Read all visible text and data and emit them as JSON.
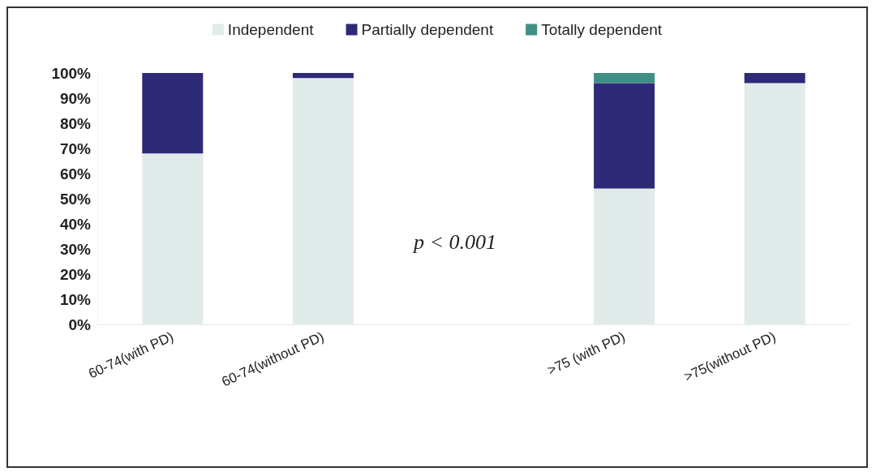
{
  "chart_data": {
    "type": "bar",
    "stacked": true,
    "categories": [
      "60-74(with PD)",
      "60-74(without PD)",
      null,
      ">75 (with PD)",
      ">75(without PD)"
    ],
    "series": [
      {
        "name": "Independent",
        "color": "#e1ecea",
        "values": [
          68,
          98,
          null,
          54,
          96
        ]
      },
      {
        "name": "Partially dependent",
        "color": "#2e2a78",
        "values": [
          32,
          2,
          null,
          42,
          4
        ]
      },
      {
        "name": "Totally dependent",
        "color": "#3f8f84",
        "values": [
          0,
          0,
          null,
          4,
          0
        ]
      }
    ],
    "ylim": [
      0,
      100
    ],
    "yticks": [
      {
        "value": 0,
        "label": "0%"
      },
      {
        "value": 10,
        "label": "10%"
      },
      {
        "value": 20,
        "label": "20%"
      },
      {
        "value": 30,
        "label": "30%"
      },
      {
        "value": 40,
        "label": "40%"
      },
      {
        "value": 50,
        "label": "50%"
      },
      {
        "value": 60,
        "label": "60%"
      },
      {
        "value": 70,
        "label": "70%"
      },
      {
        "value": 80,
        "label": "80%"
      },
      {
        "value": 90,
        "label": "90%"
      },
      {
        "value": 100,
        "label": "100%"
      }
    ],
    "annotations": [
      "p < 0.001"
    ],
    "grid": false,
    "legend": "top"
  }
}
